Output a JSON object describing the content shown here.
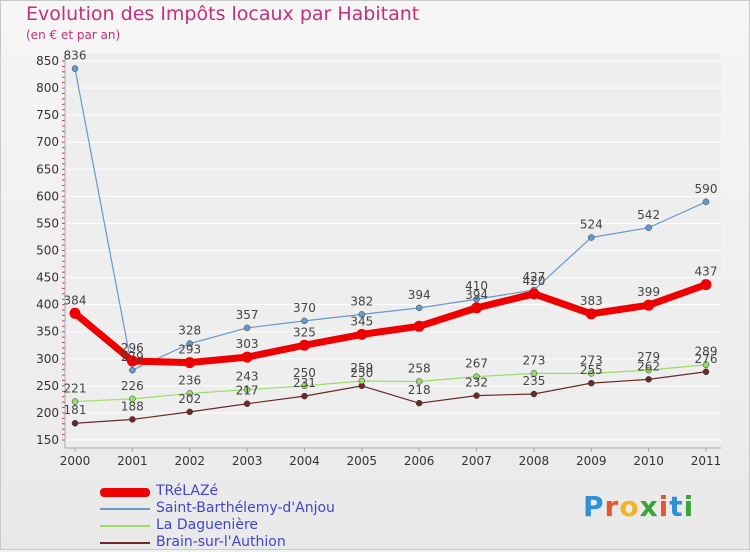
{
  "title": "Evolution des Impôts locaux par Habitant",
  "subtitle": "(en € et par an)",
  "logo": {
    "text": "Proxiti",
    "colors": [
      "#2f8fd8",
      "#e8542e",
      "#f0b429",
      "#3aa63a",
      "#e8542e",
      "#2f8fd8",
      "#3aa63a"
    ]
  },
  "chart_data": {
    "type": "line",
    "title": "Evolution des Impôts locaux par Habitant",
    "ylabel": "(en € et par an)",
    "xlabel": "",
    "ylim": [
      150,
      850
    ],
    "yticks": [
      150,
      200,
      250,
      300,
      350,
      400,
      450,
      500,
      550,
      600,
      650,
      700,
      750,
      800,
      850
    ],
    "categories": [
      "2000",
      "2001",
      "2002",
      "2003",
      "2004",
      "2005",
      "2006",
      "2007",
      "2008",
      "2009",
      "2010",
      "2011"
    ],
    "series": [
      {
        "name": "TRéLAZé",
        "color": "#ee0000",
        "values": [
          384,
          296,
          293,
          303,
          325,
          345,
          360,
          394,
          420,
          383,
          399,
          437
        ],
        "labels": [
          "384",
          "296",
          "293",
          "303",
          "325",
          "345",
          "",
          "394",
          "420",
          "383",
          "399",
          "437"
        ]
      },
      {
        "name": "Saint-Barthélemy-d'Anjou",
        "color": "#6699cc",
        "values": [
          836,
          279,
          328,
          357,
          370,
          382,
          394,
          410,
          427,
          524,
          542,
          590
        ],
        "labels": [
          "836",
          "279",
          "328",
          "357",
          "370",
          "382",
          "394",
          "410",
          "427",
          "524",
          "542",
          "590"
        ]
      },
      {
        "name": "La Daguenière",
        "color": "#99dd66",
        "values": [
          221,
          226,
          236,
          243,
          250,
          259,
          258,
          267,
          273,
          273,
          279,
          289
        ],
        "labels": [
          "221",
          "226",
          "236",
          "243",
          "250",
          "259",
          "258",
          "267",
          "273",
          "273",
          "279",
          "289"
        ]
      },
      {
        "name": "Brain-sur-l'Authion",
        "color": "#6b2a2a",
        "values": [
          181,
          188,
          202,
          217,
          231,
          250,
          218,
          232,
          235,
          255,
          262,
          276
        ],
        "labels": [
          "181",
          "188",
          "202",
          "217",
          "231",
          "250",
          "218",
          "232",
          "235",
          "255",
          "262",
          "276"
        ]
      }
    ]
  }
}
